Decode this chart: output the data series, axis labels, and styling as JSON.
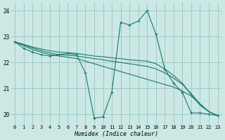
{
  "xlabel": "Humidex (Indice chaleur)",
  "background_color": "#cce8e4",
  "grid_color": "#99ccc8",
  "line_color": "#1a7a6e",
  "xlim": [
    -0.5,
    23.5
  ],
  "ylim": [
    19.6,
    24.3
  ],
  "yticks": [
    20,
    21,
    22,
    23,
    24
  ],
  "xticks": [
    0,
    1,
    2,
    3,
    4,
    5,
    6,
    7,
    8,
    9,
    10,
    11,
    12,
    13,
    14,
    15,
    16,
    17,
    18,
    19,
    20,
    21,
    22,
    23
  ],
  "series": [
    {
      "x": [
        0,
        1,
        2,
        3,
        4,
        5,
        6,
        7,
        8,
        9,
        10,
        11,
        12,
        13,
        14,
        15,
        16,
        17,
        18,
        19,
        20,
        21,
        22,
        23
      ],
      "y": [
        22.8,
        22.55,
        22.4,
        22.3,
        22.25,
        22.3,
        22.35,
        22.3,
        21.6,
        19.85,
        19.9,
        20.85,
        23.55,
        23.45,
        23.6,
        24.0,
        23.1,
        21.75,
        21.2,
        20.85,
        20.05,
        20.05,
        20.0,
        19.95
      ],
      "style": "solid",
      "marker": true
    },
    {
      "x": [
        0,
        1,
        2,
        3,
        4,
        5,
        6,
        7,
        8,
        9,
        10,
        11,
        12,
        13,
        14,
        15,
        16,
        17,
        18,
        19,
        20,
        21,
        22,
        23
      ],
      "y": [
        22.8,
        22.65,
        22.5,
        22.4,
        22.3,
        22.25,
        22.2,
        22.15,
        22.05,
        21.95,
        21.85,
        21.75,
        21.65,
        21.55,
        21.45,
        21.35,
        21.25,
        21.15,
        21.05,
        20.9,
        20.7,
        20.4,
        20.1,
        19.95
      ],
      "style": "solid",
      "marker": false
    },
    {
      "x": [
        0,
        1,
        2,
        3,
        4,
        5,
        6,
        7,
        8,
        9,
        10,
        11,
        12,
        13,
        14,
        15,
        16,
        17,
        18,
        19,
        20,
        21,
        22,
        23
      ],
      "y": [
        22.8,
        22.68,
        22.56,
        22.46,
        22.37,
        22.3,
        22.28,
        22.25,
        22.2,
        22.15,
        22.1,
        22.05,
        22.0,
        21.95,
        21.9,
        21.85,
        21.75,
        21.6,
        21.4,
        21.15,
        20.8,
        20.4,
        20.1,
        19.95
      ],
      "style": "solid",
      "marker": false
    },
    {
      "x": [
        0,
        1,
        2,
        3,
        4,
        5,
        6,
        7,
        8,
        9,
        10,
        11,
        12,
        13,
        14,
        15,
        16,
        17,
        18,
        19,
        20,
        21,
        22,
        23
      ],
      "y": [
        22.8,
        22.7,
        22.6,
        22.52,
        22.45,
        22.4,
        22.38,
        22.35,
        22.3,
        22.25,
        22.22,
        22.18,
        22.15,
        22.1,
        22.08,
        22.05,
        21.95,
        21.75,
        21.5,
        21.2,
        20.75,
        20.35,
        20.1,
        19.95
      ],
      "style": "solid",
      "marker": false
    }
  ]
}
